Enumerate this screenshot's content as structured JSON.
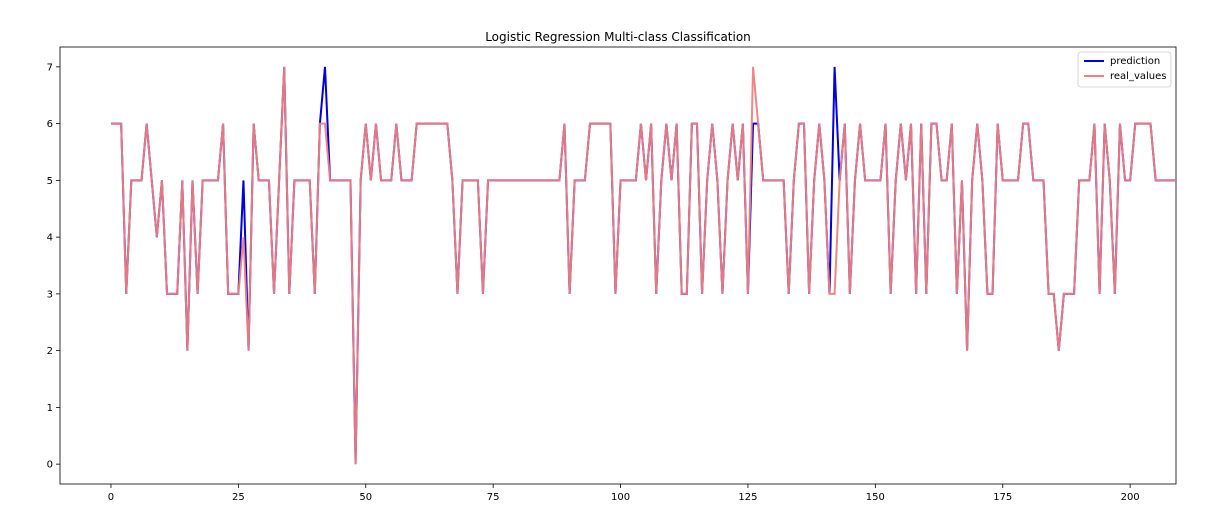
{
  "chart_data": {
    "type": "line",
    "title": "Logistic Regression Multi-class Classification",
    "xlabel": "",
    "ylabel": "",
    "xlim": [
      -10,
      209
    ],
    "ylim": [
      -0.35,
      7.35
    ],
    "xticks": [
      0,
      25,
      50,
      75,
      100,
      125,
      150,
      175,
      200
    ],
    "yticks": [
      0,
      1,
      2,
      3,
      4,
      5,
      6,
      7
    ],
    "grid": false,
    "legend_position": "top-right",
    "series": [
      {
        "name": "prediction",
        "color": "#0000dd",
        "linewidth": 2,
        "values": [
          6,
          6,
          6,
          3,
          5,
          5,
          5,
          6,
          5,
          4,
          5,
          3,
          3,
          3,
          5,
          2,
          5,
          3,
          5,
          5,
          5,
          5,
          6,
          3,
          3,
          3,
          5,
          2,
          6,
          5,
          5,
          5,
          3,
          5,
          7,
          3,
          5,
          5,
          5,
          5,
          3,
          6,
          7,
          5,
          5,
          5,
          5,
          5,
          0,
          5,
          6,
          5,
          6,
          5,
          5,
          5,
          6,
          5,
          5,
          5,
          6,
          6,
          6,
          6,
          6,
          6,
          6,
          5,
          3,
          5,
          5,
          5,
          5,
          3,
          5,
          5,
          5,
          5,
          5,
          5,
          5,
          5,
          5,
          5,
          5,
          5,
          5,
          5,
          5,
          6,
          3,
          5,
          5,
          5,
          6,
          6,
          6,
          6,
          6,
          3,
          5,
          5,
          5,
          5,
          6,
          5,
          6,
          3,
          5,
          6,
          5,
          6,
          3,
          3,
          6,
          6,
          3,
          5,
          6,
          5,
          3,
          5,
          6,
          5,
          6,
          3,
          6,
          6,
          5,
          5,
          5,
          5,
          5,
          3,
          5,
          6,
          6,
          3,
          5,
          6,
          5,
          3,
          7,
          5,
          6,
          3,
          5,
          6,
          5,
          5,
          5,
          5,
          6,
          3,
          5,
          6,
          5,
          6,
          3,
          6,
          3,
          6,
          6,
          5,
          5,
          6,
          3,
          5,
          2,
          5,
          6,
          5,
          3,
          3,
          6,
          5,
          5,
          5,
          5,
          6,
          6,
          5,
          5,
          5,
          3,
          3,
          2,
          3,
          3,
          3,
          5,
          5,
          5,
          6,
          3,
          6,
          5,
          3,
          6,
          5,
          5,
          6,
          6,
          6,
          6,
          5,
          5,
          5,
          5,
          5
        ]
      },
      {
        "name": "real_values",
        "color": "#f08080",
        "linewidth": 2,
        "values": [
          6,
          6,
          6,
          3,
          5,
          5,
          5,
          6,
          5,
          4,
          5,
          3,
          3,
          3,
          5,
          2,
          5,
          3,
          5,
          5,
          5,
          5,
          6,
          3,
          3,
          3,
          4,
          2,
          6,
          5,
          5,
          5,
          3,
          5,
          7,
          3,
          5,
          5,
          5,
          5,
          3,
          6,
          6,
          5,
          5,
          5,
          5,
          5,
          0,
          5,
          6,
          5,
          6,
          5,
          5,
          5,
          6,
          5,
          5,
          5,
          6,
          6,
          6,
          6,
          6,
          6,
          6,
          5,
          3,
          5,
          5,
          5,
          5,
          3,
          5,
          5,
          5,
          5,
          5,
          5,
          5,
          5,
          5,
          5,
          5,
          5,
          5,
          5,
          5,
          6,
          3,
          5,
          5,
          5,
          6,
          6,
          6,
          6,
          6,
          3,
          5,
          5,
          5,
          5,
          6,
          5,
          6,
          3,
          5,
          6,
          5,
          6,
          3,
          3,
          6,
          6,
          3,
          5,
          6,
          5,
          3,
          5,
          6,
          5,
          6,
          3,
          7,
          6,
          5,
          5,
          5,
          5,
          5,
          3,
          5,
          6,
          6,
          3,
          5,
          6,
          5,
          3,
          3,
          5,
          6,
          3,
          5,
          6,
          5,
          5,
          5,
          5,
          6,
          3,
          5,
          6,
          5,
          6,
          3,
          6,
          3,
          6,
          6,
          5,
          5,
          6,
          3,
          5,
          2,
          5,
          6,
          5,
          3,
          3,
          6,
          5,
          5,
          5,
          5,
          6,
          6,
          5,
          5,
          5,
          3,
          3,
          2,
          3,
          3,
          3,
          5,
          5,
          5,
          6,
          3,
          6,
          5,
          3,
          6,
          5,
          5,
          6,
          6,
          6,
          6,
          5,
          5,
          5,
          5,
          5
        ]
      }
    ]
  }
}
